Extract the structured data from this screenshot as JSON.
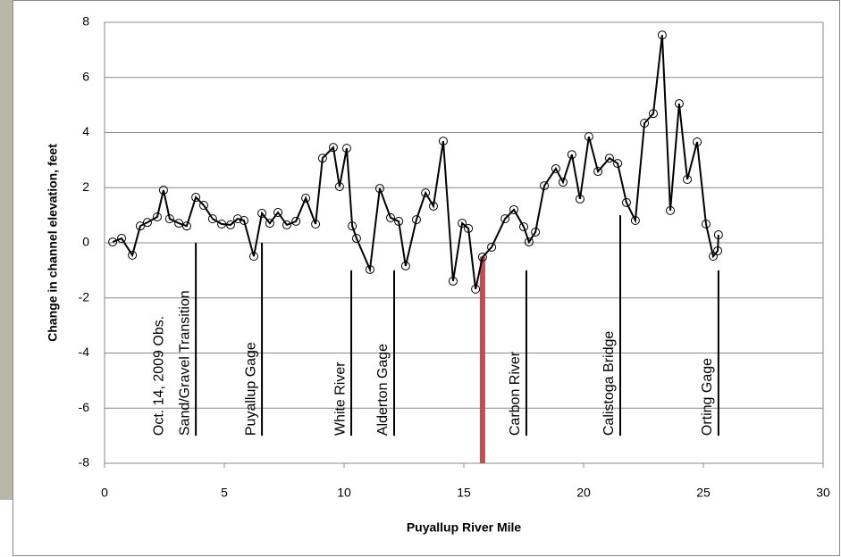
{
  "chart_data": {
    "type": "line",
    "xlabel": "Puyallup River Mile",
    "ylabel": "Change in channel elevation, feet",
    "xlim": [
      0,
      30
    ],
    "xticks": [
      0,
      5,
      10,
      15,
      20,
      25,
      30
    ],
    "ylim": [
      -8,
      8
    ],
    "yticks": [
      -8,
      -6,
      -4,
      -2,
      0,
      2,
      4,
      6,
      8
    ],
    "grid": true,
    "series": [
      {
        "color": "#000000",
        "x": [
          0.34,
          0.71,
          1.16,
          1.49,
          1.79,
          2.2,
          2.46,
          2.72,
          3.1,
          3.43,
          3.81,
          4.14,
          4.51,
          4.89,
          5.26,
          5.56,
          5.82,
          6.23,
          6.57,
          6.9,
          7.24,
          7.61,
          7.99,
          8.4,
          8.81,
          9.1,
          9.55,
          9.81,
          10.11,
          10.34,
          10.52,
          11.08,
          11.49,
          11.94,
          12.28,
          12.57,
          13.02,
          13.4,
          13.73,
          14.14,
          14.55,
          14.93,
          15.19,
          15.49,
          15.78,
          16.16,
          16.72,
          17.09,
          17.5,
          17.72,
          17.99,
          18.36,
          18.84,
          19.14,
          19.51,
          19.85,
          20.22,
          20.6,
          21.08,
          21.42,
          21.79,
          22.16,
          22.54,
          22.91,
          23.28,
          23.62,
          23.99,
          24.33,
          24.74,
          25.11,
          25.41,
          25.6,
          25.63
        ],
        "values": [
          0.03,
          0.16,
          -0.45,
          0.61,
          0.74,
          0.94,
          1.91,
          0.87,
          0.71,
          0.61,
          1.65,
          1.36,
          0.87,
          0.68,
          0.65,
          0.87,
          0.81,
          -0.49,
          1.07,
          0.71,
          1.1,
          0.65,
          0.78,
          1.62,
          0.68,
          3.07,
          3.46,
          2.04,
          3.43,
          0.61,
          0.16,
          -0.97,
          1.97,
          0.91,
          0.78,
          -0.84,
          0.84,
          1.81,
          1.33,
          3.69,
          -1.39,
          0.71,
          0.52,
          -1.68,
          -0.52,
          -0.16,
          0.87,
          1.2,
          0.58,
          0.03,
          0.39,
          2.07,
          2.69,
          2.2,
          3.2,
          1.59,
          3.85,
          2.59,
          3.07,
          2.88,
          1.46,
          0.81,
          4.34,
          4.69,
          7.54,
          1.17,
          5.05,
          2.3,
          3.66,
          0.68,
          -0.49,
          -0.29,
          0.29
        ]
      }
    ],
    "annotations": [
      {
        "lines": [
          "Oct. 14, 2009 Obs.",
          "Sand/Gravel Transition"
        ],
        "x": 3.81,
        "y_top": 0,
        "y_bottom": -7,
        "color": "#000000"
      },
      {
        "lines": [
          "Puyallup Gage"
        ],
        "x": 6.57,
        "y_top": 0,
        "y_bottom": -7,
        "color": "#000000"
      },
      {
        "lines": [
          "White River"
        ],
        "x": 10.3,
        "y_top": -1,
        "y_bottom": -7,
        "color": "#000000"
      },
      {
        "lines": [
          "Alderton Gage"
        ],
        "x": 12.09,
        "y_top": -1,
        "y_bottom": -7,
        "color": "#000000"
      },
      {
        "lines": [
          "Carbon River"
        ],
        "x": 17.61,
        "y_top": -1,
        "y_bottom": -7,
        "color": "#000000"
      },
      {
        "lines": [
          "Calistoga Bridge"
        ],
        "x": 21.53,
        "y_top": 1,
        "y_bottom": -7,
        "color": "#000000"
      },
      {
        "lines": [
          "Orting Gage"
        ],
        "x": 25.63,
        "y_top": -1,
        "y_bottom": -7,
        "color": "#000000"
      },
      {
        "lines": [],
        "x": 15.78,
        "y_top": -0.5,
        "y_bottom": -8,
        "color": "#c0504d"
      }
    ]
  }
}
